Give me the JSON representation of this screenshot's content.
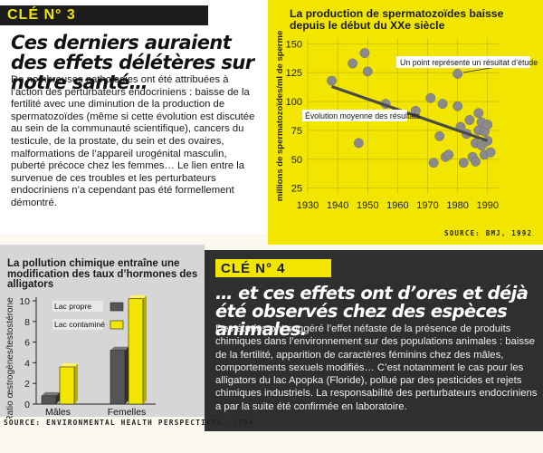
{
  "cle3": {
    "label": "CLÉ N° 3",
    "headline": "Ces derniers auraient des effets délétères sur notre santé…",
    "body": "De nombreuses pathologies ont été attribuées à l’action des perturbateurs endocriniens : baisse de la fertilité avec une diminution de la production de spermatozoïdes (même si cette évolution est discutée au sein de la communauté scientifique), cancers du testicule, de la prostate, du sein et des ovaires, malformations de l’appareil urogénital masculin, puberté précoce chez les femmes… Le lien entre la survenue de ces troubles et les perturbateurs endocriniens n’a cependant pas été formellement démontré."
  },
  "cle4": {
    "label": "CLÉ N° 4",
    "headline": "… et ces effets ont d’ores et déjà été observés chez des espèces animales.",
    "body": "Des études ont suggéré l’effet néfaste de la présence de produits chimiques dans l’environnement sur des populations animales : baisse de la fertilité, apparition de caractères féminins chez des mâles, comportements sexuels modifiés… C’est notamment le cas pour les alligators du lac Apopka (Floride), pollué par des pesticides et rejets chimiques industriels. La responsabilité des perturbateurs endocriniens a par la suite été confirmée en laboratoire."
  },
  "colors": {
    "yellow": "#f2e600",
    "dark_panel": "#2f2f2f",
    "grey_panel": "#d6d6d6",
    "white_panel": "#ffffff",
    "dot": "#8a8a8a",
    "regression_line": "#4a4a4a",
    "bar_clean": "#555555",
    "bar_contaminated": "#f2e600"
  },
  "chart_data": [
    {
      "type": "scatter",
      "title": "La production de spermatozoïdes baisse depuis le début du XXe siècle",
      "ylabel": "millions de spermatozoïdes/ml de sperme",
      "xlabel": "",
      "xlim": [
        1930,
        1994
      ],
      "ylim": [
        20,
        155
      ],
      "xticks": [
        1930,
        1940,
        1950,
        1960,
        1970,
        1980,
        1990
      ],
      "yticks": [
        25,
        50,
        75,
        100,
        125,
        150
      ],
      "grid": true,
      "points": [
        [
          1938,
          118
        ],
        [
          1945,
          133
        ],
        [
          1947,
          64
        ],
        [
          1949,
          142
        ],
        [
          1950,
          126
        ],
        [
          1956,
          98
        ],
        [
          1966,
          92
        ],
        [
          1971,
          103
        ],
        [
          1975,
          98
        ],
        [
          1972,
          47
        ],
        [
          1974,
          70
        ],
        [
          1976,
          52
        ],
        [
          1977,
          54
        ],
        [
          1980,
          96
        ],
        [
          1980,
          124
        ],
        [
          1981,
          78
        ],
        [
          1982,
          47
        ],
        [
          1983,
          72
        ],
        [
          1984,
          84
        ],
        [
          1985,
          52
        ],
        [
          1986,
          64
        ],
        [
          1986,
          48
        ],
        [
          1987,
          75
        ],
        [
          1987,
          90
        ],
        [
          1988,
          62
        ],
        [
          1988,
          82
        ],
        [
          1989,
          74
        ],
        [
          1989,
          54
        ],
        [
          1990,
          66
        ],
        [
          1990,
          80
        ],
        [
          1991,
          56
        ]
      ],
      "trend": {
        "x": [
          1938,
          1990
        ],
        "y": [
          113,
          66
        ],
        "label": "Évolution moyenne des résultats"
      },
      "annotation": "Un point représente un résultat d’étude",
      "source": "SOURCE: BMJ, 1992"
    },
    {
      "type": "bar",
      "title": "La pollution chimique entraîne une modification des taux d’hormones des alligators",
      "ylabel": "Ratio œstrogènes/testostérone",
      "categories": [
        "Mâles",
        "Femelles"
      ],
      "ylim": [
        0,
        10
      ],
      "yticks": [
        0,
        2,
        4,
        6,
        8,
        10
      ],
      "series": [
        {
          "name": "Lac propre",
          "values": [
            0.8,
            5.2
          ]
        },
        {
          "name": "Lac contaminé",
          "values": [
            3.6,
            10.2
          ]
        }
      ],
      "legend": "top-left",
      "source": "SOURCE: ENVIRONMENTAL HEALTH PERSPECTIVES, 1994"
    }
  ]
}
